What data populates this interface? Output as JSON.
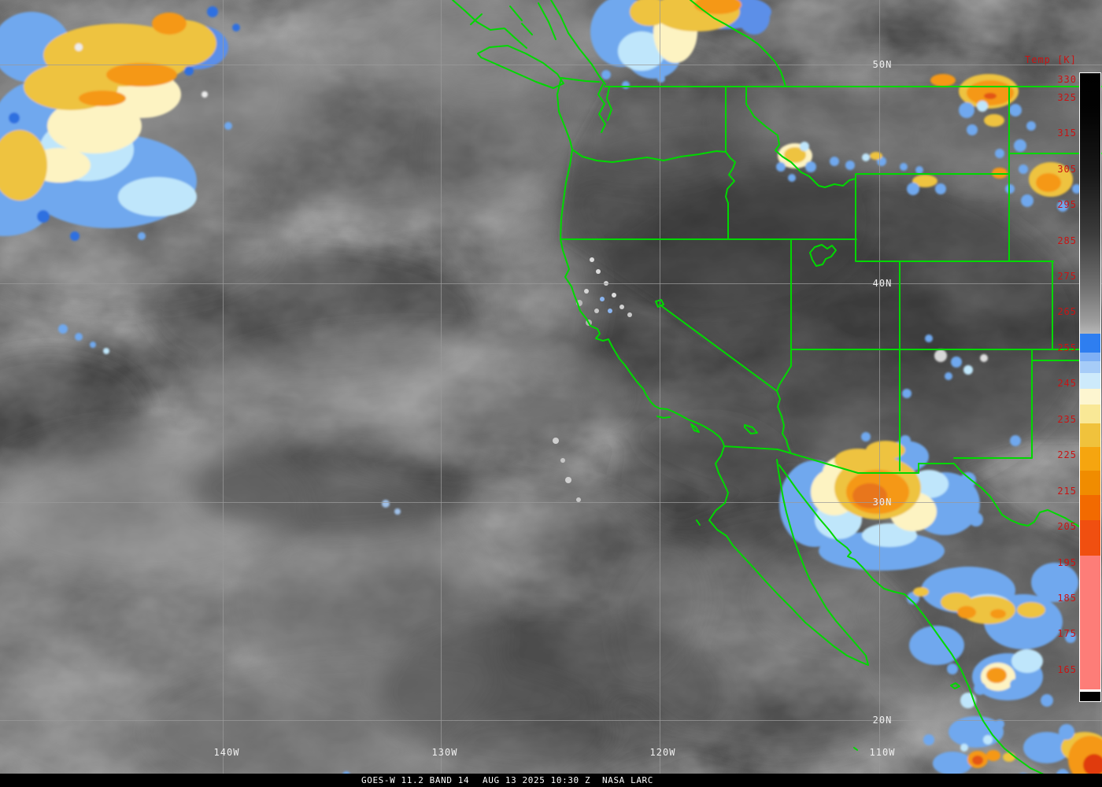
{
  "caption": {
    "product": "GOES-W 11.2 BAND 14",
    "datetime": "AUG 13 2025 10:30 Z",
    "credit": "NASA LARC"
  },
  "colorbar": {
    "title": "Temp [K]",
    "top_value": 330,
    "ticks": [
      "330",
      "325",
      "315",
      "305",
      "295",
      "285",
      "275",
      "265",
      "255",
      "245",
      "235",
      "225",
      "215",
      "205",
      "195",
      "185",
      "175",
      "165"
    ],
    "tick_color": "#c81414",
    "palette": [
      "#000000",
      "#b8b8b8",
      "#2e7ef0",
      "#7fb0f5",
      "#a6ccf8",
      "#cdeafb",
      "#fdf6d0",
      "#f9e896",
      "#f0c23c",
      "#f6a50f",
      "#f08c00",
      "#f26a00",
      "#f04f10",
      "#fd7d78",
      "#ffffff",
      "#000000"
    ]
  },
  "map": {
    "lat_labels": [
      "50N",
      "40N",
      "30N",
      "20N"
    ],
    "lon_labels": [
      "140W",
      "130W",
      "120W",
      "110W"
    ],
    "label_color": "#f0f0f0",
    "grid_color": "#9a9a9a",
    "border_color": "#00d800"
  },
  "clouds": {
    "enhancement_colors": {
      "gold": "#eec33f",
      "orange": "#f59812",
      "deep_orange": "#e8761f",
      "red_core": "#e03b10",
      "cream": "#fdf3c2",
      "cyan": "#bfe6fb",
      "light_blue": "#6fa8ee",
      "blue": "#2f6fe0"
    }
  }
}
